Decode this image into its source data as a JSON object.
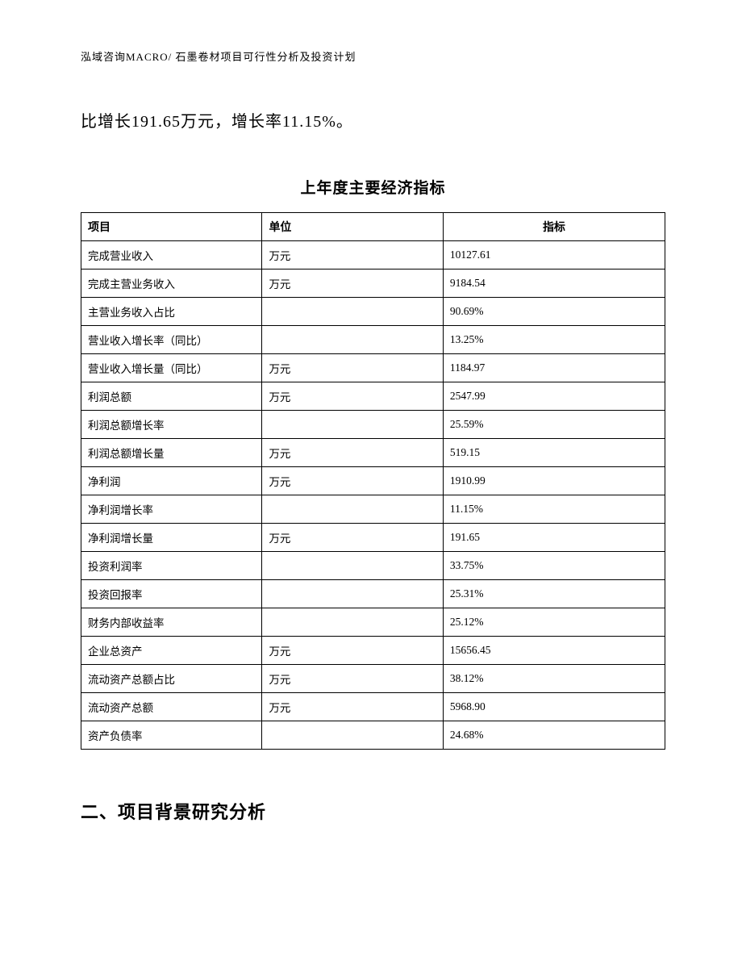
{
  "header": {
    "text": "泓域咨询MACRO/ 石墨卷材项目可行性分析及投资计划"
  },
  "intro": {
    "text": "比增长191.65万元，增长率11.15%。"
  },
  "table": {
    "title": "上年度主要经济指标",
    "columns": [
      "项目",
      "单位",
      "指标"
    ],
    "rows": [
      [
        "完成营业收入",
        "万元",
        "10127.61"
      ],
      [
        "完成主营业务收入",
        "万元",
        "9184.54"
      ],
      [
        "主营业务收入占比",
        "",
        "90.69%"
      ],
      [
        "营业收入增长率（同比）",
        "",
        "13.25%"
      ],
      [
        "营业收入增长量（同比）",
        "万元",
        "1184.97"
      ],
      [
        "利润总额",
        "万元",
        "2547.99"
      ],
      [
        "利润总额增长率",
        "",
        "25.59%"
      ],
      [
        "利润总额增长量",
        "万元",
        "519.15"
      ],
      [
        "净利润",
        "万元",
        "1910.99"
      ],
      [
        "净利润增长率",
        "",
        "11.15%"
      ],
      [
        "净利润增长量",
        "万元",
        "191.65"
      ],
      [
        "投资利润率",
        "",
        "33.75%"
      ],
      [
        "投资回报率",
        "",
        "25.31%"
      ],
      [
        "财务内部收益率",
        "",
        "25.12%"
      ],
      [
        "企业总资产",
        "万元",
        "15656.45"
      ],
      [
        "流动资产总额占比",
        "万元",
        "38.12%"
      ],
      [
        "流动资产总额",
        "万元",
        "5968.90"
      ],
      [
        "资产负债率",
        "",
        "24.68%"
      ]
    ]
  },
  "section": {
    "heading": "二、项目背景研究分析"
  }
}
